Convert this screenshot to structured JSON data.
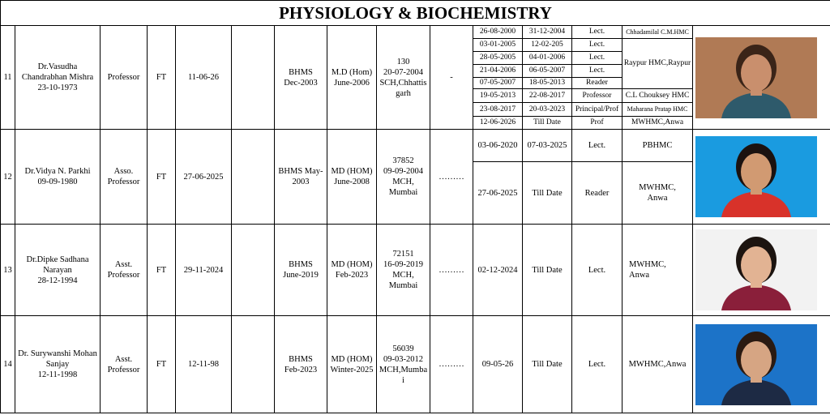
{
  "title": "PHYSIOLOGY & BIOCHEMISTRY",
  "rows": [
    {
      "no": "11",
      "name": [
        "Dr.Vasudha",
        "Chandrabhan Mishra",
        "23-10-1973"
      ],
      "designation": "Professor",
      "type": "FT",
      "date": "11-06-26",
      "ug": [
        "BHMS",
        "Dec-2003"
      ],
      "pg": [
        "M.D (Hom)",
        "June-2006"
      ],
      "registration": [
        "130",
        "20-07-2004",
        "SCH,Chhattis",
        "garh"
      ],
      "remark": "-",
      "experience": [
        {
          "from": "26-08-2000",
          "to": "31-12-2004",
          "post": "Lect.",
          "college": [
            "Chhadamilal C.M.HMC"
          ]
        },
        {
          "from": "03-01-2005",
          "to": "12-02-205",
          "post": "Lect.",
          "college": [
            "Raypur HMC,Raypur"
          ]
        },
        {
          "from": "28-05-2005",
          "to": "04-01-2006",
          "post": "Lect."
        },
        {
          "from": "21-04-2006",
          "to": "06-05-2007",
          "post": "Lect."
        },
        {
          "from": "07-05-2007",
          "to": "18-05-2013",
          "post": "Reader"
        },
        {
          "from": "19-05-2013",
          "to": "22-08-2017",
          "post": "Professor",
          "college": [
            "C.L Chouksey HMC"
          ]
        },
        {
          "from": "23-08-2017",
          "to": "20-03-2023",
          "post": "Principal/Prof",
          "college": [
            "Maharana Pratap HMC"
          ]
        },
        {
          "from": "12-06-2026",
          "to": "Till Date",
          "post": "Prof",
          "college": [
            "MWHMC,Anwa"
          ]
        }
      ]
    },
    {
      "no": "12",
      "name": [
        "Dr.Vidya N. Parkhi",
        "09-09-1980"
      ],
      "designation": [
        "Asso.",
        "Professor"
      ],
      "type": "FT",
      "date": "27-06-2025",
      "ug": [
        "BHMS May-",
        "2003"
      ],
      "pg": [
        "MD (HOM)",
        "June-2008"
      ],
      "registration": [
        "37852",
        "09-09-2004",
        "MCH,",
        "Mumbai"
      ],
      "remark": "………",
      "experience": [
        {
          "from": "03-06-2020",
          "to": "07-03-2025",
          "post": "Lect.",
          "college": [
            "PBHMC"
          ]
        },
        {
          "from": "27-06-2025",
          "to": "Till Date",
          "post": "Reader",
          "college": [
            "MWHMC,",
            "Anwa"
          ]
        }
      ]
    },
    {
      "no": "13",
      "name": [
        "Dr.Dipke Sadhana",
        "Narayan",
        "28-12-1994"
      ],
      "designation": [
        "Asst.",
        "Professor"
      ],
      "type": "FT",
      "date": "29-11-2024",
      "ug": [
        "BHMS",
        "June-2019"
      ],
      "pg": [
        "MD (HOM)",
        "Feb-2023"
      ],
      "registration": [
        "72151",
        "16-09-2019",
        "MCH,",
        "Mumbai"
      ],
      "remark": "………",
      "experience": [
        {
          "from": "02-12-2024",
          "to": "Till Date",
          "post": "Lect.",
          "college": [
            "MWHMC,",
            "Anwa"
          ]
        }
      ]
    },
    {
      "no": "14",
      "name": [
        "Dr. Surywanshi Mohan",
        "Sanjay",
        "12-11-1998"
      ],
      "designation": [
        "Asst.",
        "Professor"
      ],
      "type": "FT",
      "date": "12-11-98",
      "ug": [
        "BHMS",
        "Feb-2023"
      ],
      "pg": [
        "MD (HOM)",
        "Winter-2025"
      ],
      "registration": [
        "56039",
        "09-03-2012",
        "MCH,Mumba",
        "i"
      ],
      "remark": "………",
      "experience": [
        {
          "from": "09-05-26",
          "to": "Till Date",
          "post": "Lect.",
          "college": [
            "MWHMC,Anwa"
          ]
        }
      ]
    }
  ]
}
